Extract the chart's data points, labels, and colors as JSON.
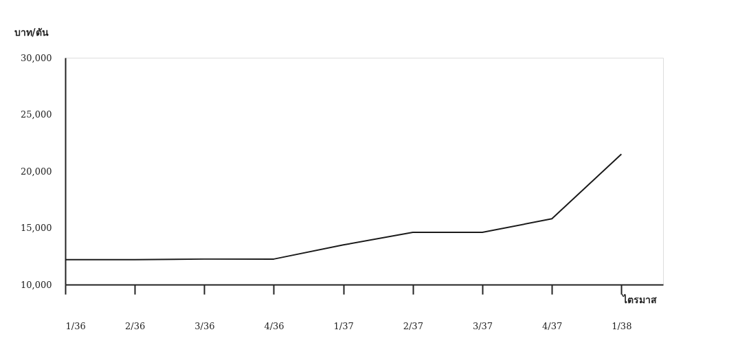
{
  "chart_data": {
    "type": "line",
    "ylabel": "บาท/ตัน",
    "xlabel": "ไตรมาส",
    "categories": [
      "1/36",
      "2/36",
      "3/36",
      "4/36",
      "1/37",
      "2/37",
      "3/37",
      "4/37",
      "1/38"
    ],
    "series": [
      {
        "color": "#1a1a1a",
        "values": [
          12200,
          12200,
          12250,
          12250,
          13500,
          14600,
          14600,
          15800,
          21500
        ]
      }
    ],
    "ylim": [
      10000,
      30000
    ],
    "yticks": [
      {
        "value": 10000,
        "label": "10,000"
      },
      {
        "value": 15000,
        "label": "15,000"
      },
      {
        "value": 20000,
        "label": "20,000"
      },
      {
        "value": 25000,
        "label": "25,000"
      },
      {
        "value": 30000,
        "label": "30,000"
      }
    ],
    "grid": false,
    "legend": false,
    "marker": "none",
    "line_style": "solid"
  }
}
